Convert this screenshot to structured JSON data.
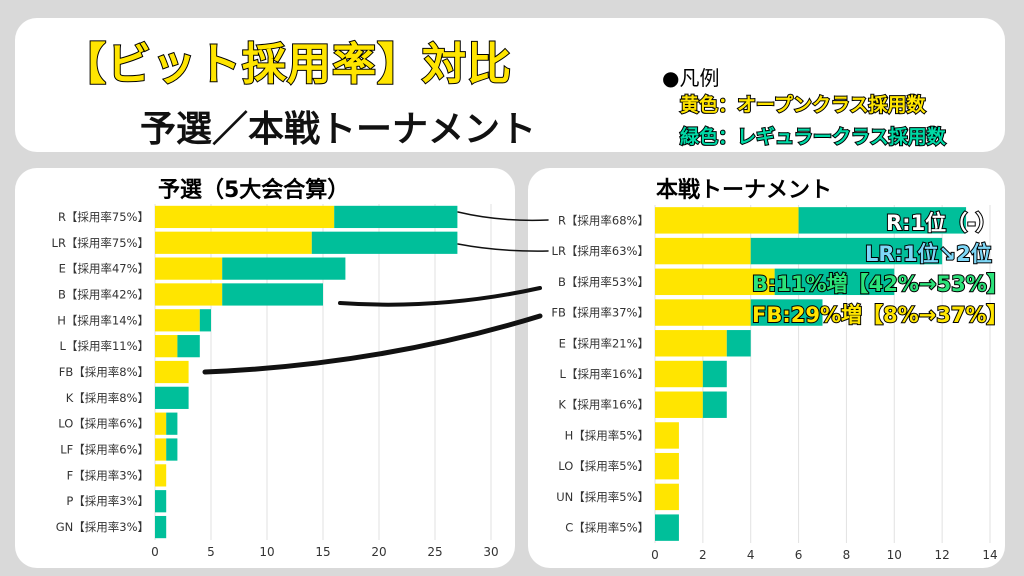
{
  "header": {
    "title": "【ビット採用率】対比",
    "subtitle": "予選／本戦トーナメント"
  },
  "legend": {
    "heading": "●凡例",
    "yellow": "黄色：オープンクラス採用数",
    "green": "緑色：レギュラークラス採用数"
  },
  "colors": {
    "open": "#FFE500",
    "regular": "#00BF9A"
  },
  "annotations": {
    "r": "R:1位（-）",
    "lr": "LR:1位↘2位",
    "b": "B:11%増【42%→53%】",
    "fb": "FB:29%増【8%→37%】"
  },
  "chart_data": [
    {
      "type": "bar",
      "orientation": "horizontal",
      "stacked": true,
      "title": "予選（5大会合算）",
      "xlim": [
        0,
        30
      ],
      "xticks": [
        0,
        5,
        10,
        15,
        20,
        25,
        30
      ],
      "grid": true,
      "categories": [
        "R【採用率75%】",
        "LR【採用率75%】",
        "E【採用率47%】",
        "B【採用率42%】",
        "H【採用率14%】",
        "L【採用率11%】",
        "FB【採用率8%】",
        "K【採用率8%】",
        "LO【採用率6%】",
        "LF【採用率6%】",
        "F【採用率3%】",
        "P【採用率3%】",
        "GN【採用率3%】"
      ],
      "series": [
        {
          "name": "オープンクラス採用数",
          "values": [
            16,
            14,
            6,
            6,
            4,
            2,
            3,
            0,
            1,
            1,
            1,
            0,
            0
          ]
        },
        {
          "name": "レギュラークラス採用数",
          "values": [
            11,
            13,
            11,
            9,
            1,
            2,
            0,
            3,
            1,
            1,
            0,
            1,
            1
          ]
        }
      ]
    },
    {
      "type": "bar",
      "orientation": "horizontal",
      "stacked": true,
      "title": "本戦トーナメント",
      "xlim": [
        0,
        14
      ],
      "xticks": [
        0,
        2,
        4,
        6,
        8,
        10,
        12,
        14
      ],
      "grid": true,
      "categories": [
        "R【採用率68%】",
        "LR【採用率63%】",
        "B【採用率53%】",
        "FB【採用率37%】",
        "E【採用率21%】",
        "L【採用率16%】",
        "K【採用率16%】",
        "H【採用率5%】",
        "LO【採用率5%】",
        "UN【採用率5%】",
        "C【採用率5%】"
      ],
      "series": [
        {
          "name": "オープンクラス採用数",
          "values": [
            6,
            4,
            5,
            4,
            3,
            2,
            2,
            1,
            1,
            1,
            0
          ]
        },
        {
          "name": "レギュラークラス採用数",
          "values": [
            7,
            8,
            5,
            3,
            1,
            1,
            1,
            0,
            0,
            0,
            1
          ]
        }
      ]
    }
  ]
}
